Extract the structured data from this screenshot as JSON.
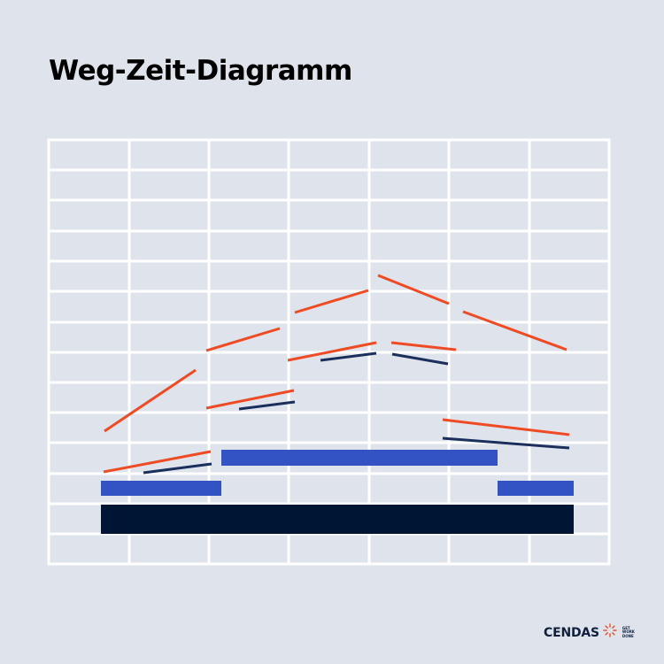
{
  "title": "Weg-Zeit-Diagramm",
  "colors": {
    "background": "#dfe3eb",
    "grid": "#ffffff",
    "orange": "#ee4b24",
    "navy": "#1a2f5c",
    "blue": "#3353c4",
    "black": "#001533"
  },
  "logo": {
    "word": "CENDAS",
    "tagline": [
      "GET",
      "WORK",
      "DONE"
    ],
    "icon": "sunburst-icon",
    "accent": "#ee4b24"
  }
}
